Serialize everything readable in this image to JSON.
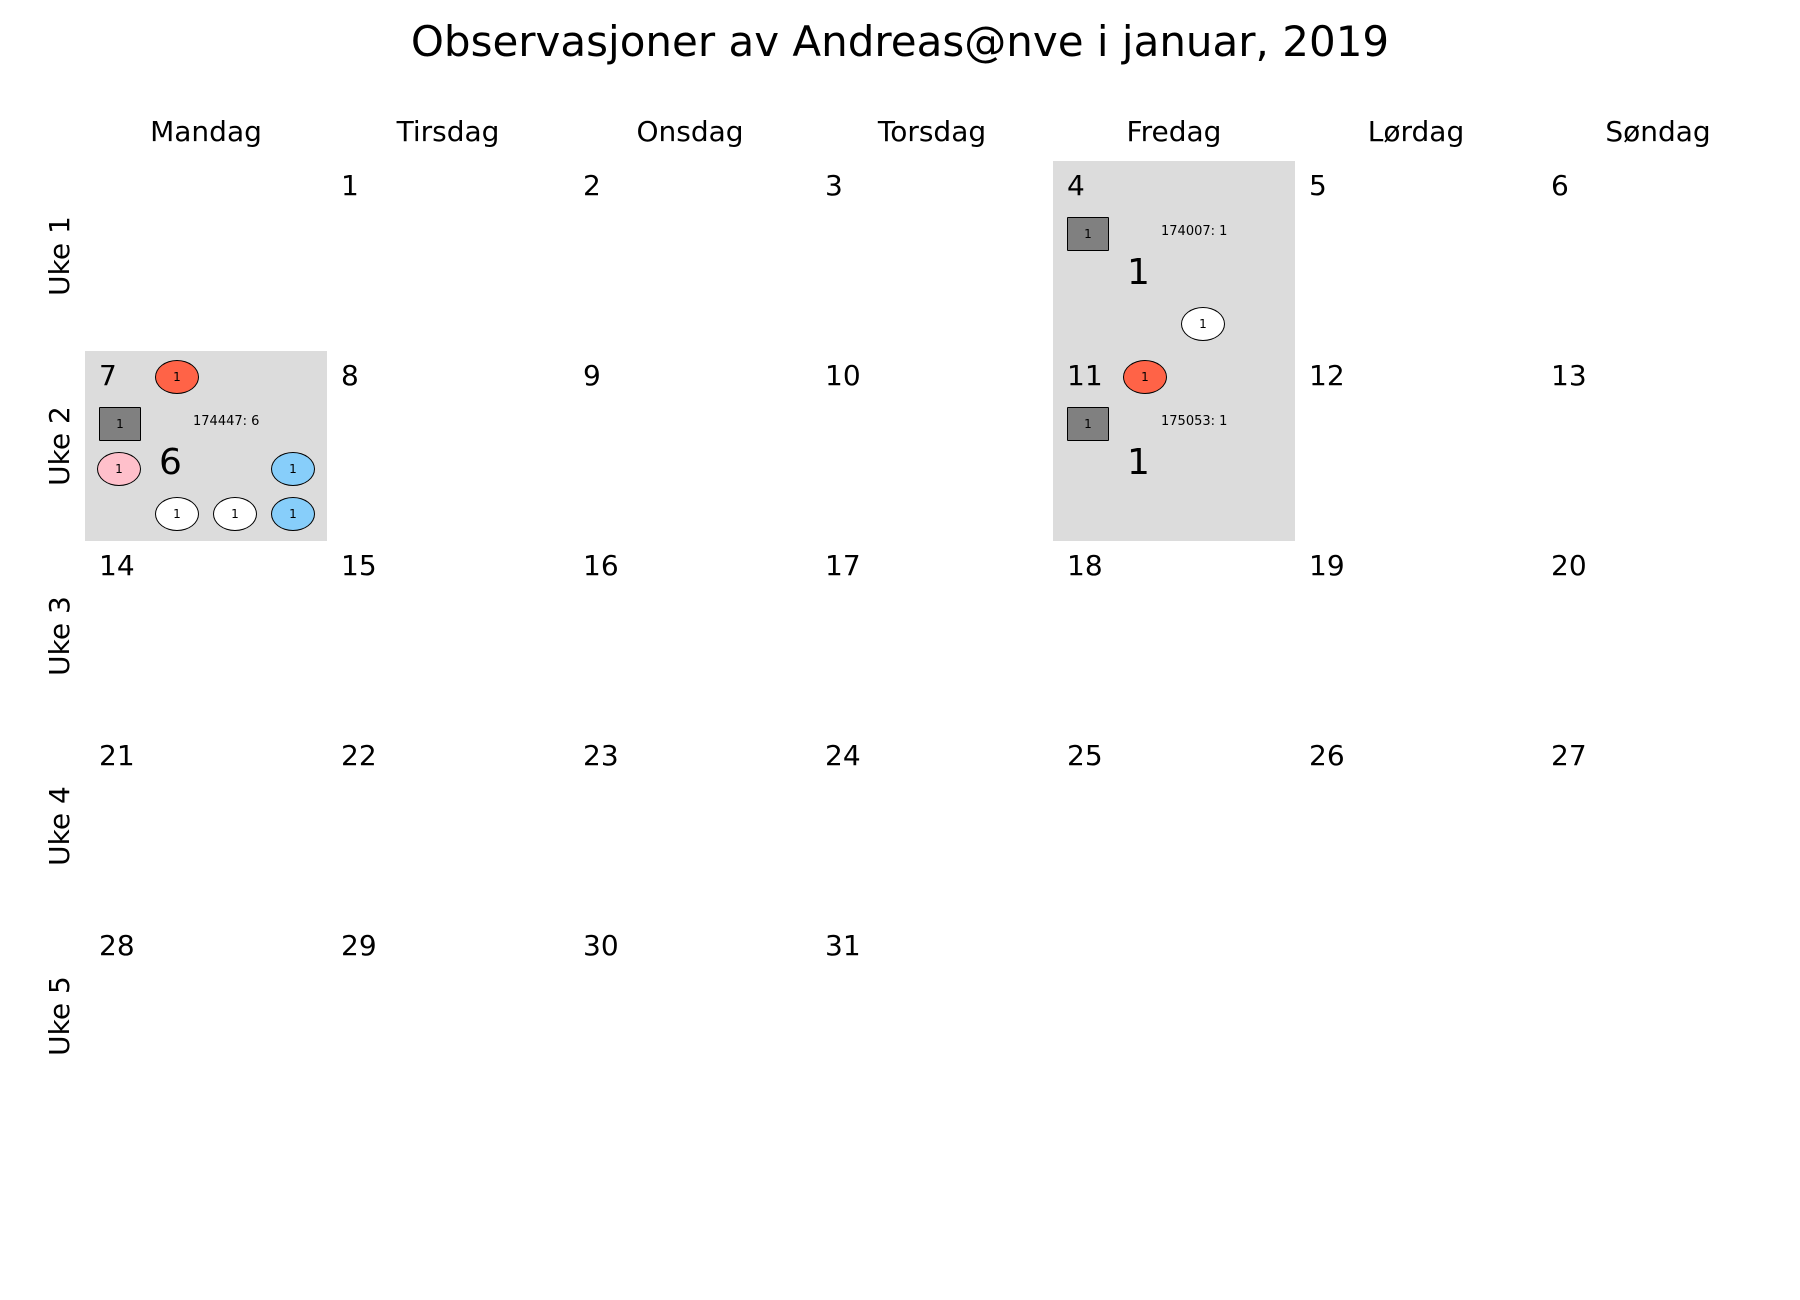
{
  "title": "Observasjoner av Andreas@nve i januar, 2019",
  "colors": {
    "active_cell": "#dcdcdc",
    "square": "#808080",
    "red": "#ff6347",
    "pink": "#ffc0cb",
    "blue": "#87cefa",
    "white": "#ffffff"
  },
  "weekdays": [
    "Mandag",
    "Tirsdag",
    "Onsdag",
    "Torsdag",
    "Fredag",
    "Lørdag",
    "Søndag"
  ],
  "weeks": [
    "Uke 1",
    "Uke 2",
    "Uke 3",
    "Uke 4",
    "Uke 5"
  ],
  "calendar": {
    "month": "januar",
    "year": 2019,
    "days": [
      {
        "day": "1",
        "week": 0,
        "weekday": 1
      },
      {
        "day": "2",
        "week": 0,
        "weekday": 2
      },
      {
        "day": "3",
        "week": 0,
        "weekday": 3
      },
      {
        "day": "4",
        "week": 0,
        "weekday": 4,
        "active": true,
        "obs_label": "174007: 1",
        "count": "1",
        "markers": [
          {
            "shape": "square",
            "color": "#808080",
            "text": "1",
            "slot": "square"
          },
          {
            "shape": "oval",
            "color": "#ffffff",
            "text": "1",
            "slot": "bottom-right"
          }
        ]
      },
      {
        "day": "5",
        "week": 0,
        "weekday": 5
      },
      {
        "day": "6",
        "week": 0,
        "weekday": 6
      },
      {
        "day": "7",
        "week": 1,
        "weekday": 0,
        "active": true,
        "obs_label": "174447: 6",
        "count": "6",
        "markers": [
          {
            "shape": "oval",
            "color": "#ff6347",
            "text": "1",
            "slot": "top"
          },
          {
            "shape": "square",
            "color": "#808080",
            "text": "1",
            "slot": "square"
          },
          {
            "shape": "oval",
            "color": "#ffc0cb",
            "text": "1",
            "slot": "left"
          },
          {
            "shape": "oval",
            "color": "#87cefa",
            "text": "1",
            "slot": "right"
          },
          {
            "shape": "oval",
            "color": "#ffffff",
            "text": "1",
            "slot": "bottom-left"
          },
          {
            "shape": "oval",
            "color": "#ffffff",
            "text": "1",
            "slot": "bottom-mid"
          },
          {
            "shape": "oval",
            "color": "#87cefa",
            "text": "1",
            "slot": "bottom-right"
          }
        ]
      },
      {
        "day": "8",
        "week": 1,
        "weekday": 1
      },
      {
        "day": "9",
        "week": 1,
        "weekday": 2
      },
      {
        "day": "10",
        "week": 1,
        "weekday": 3
      },
      {
        "day": "11",
        "week": 1,
        "weekday": 4,
        "active": true,
        "obs_label": "175053: 1",
        "count": "1",
        "markers": [
          {
            "shape": "oval",
            "color": "#ff6347",
            "text": "1",
            "slot": "top"
          },
          {
            "shape": "square",
            "color": "#808080",
            "text": "1",
            "slot": "square"
          }
        ]
      },
      {
        "day": "12",
        "week": 1,
        "weekday": 5
      },
      {
        "day": "13",
        "week": 1,
        "weekday": 6
      },
      {
        "day": "14",
        "week": 2,
        "weekday": 0
      },
      {
        "day": "15",
        "week": 2,
        "weekday": 1
      },
      {
        "day": "16",
        "week": 2,
        "weekday": 2
      },
      {
        "day": "17",
        "week": 2,
        "weekday": 3
      },
      {
        "day": "18",
        "week": 2,
        "weekday": 4
      },
      {
        "day": "19",
        "week": 2,
        "weekday": 5
      },
      {
        "day": "20",
        "week": 2,
        "weekday": 6
      },
      {
        "day": "21",
        "week": 3,
        "weekday": 0
      },
      {
        "day": "22",
        "week": 3,
        "weekday": 1
      },
      {
        "day": "23",
        "week": 3,
        "weekday": 2
      },
      {
        "day": "24",
        "week": 3,
        "weekday": 3
      },
      {
        "day": "25",
        "week": 3,
        "weekday": 4
      },
      {
        "day": "26",
        "week": 3,
        "weekday": 5
      },
      {
        "day": "27",
        "week": 3,
        "weekday": 6
      },
      {
        "day": "28",
        "week": 4,
        "weekday": 0
      },
      {
        "day": "29",
        "week": 4,
        "weekday": 1
      },
      {
        "day": "30",
        "week": 4,
        "weekday": 2
      },
      {
        "day": "31",
        "week": 4,
        "weekday": 3
      }
    ]
  }
}
